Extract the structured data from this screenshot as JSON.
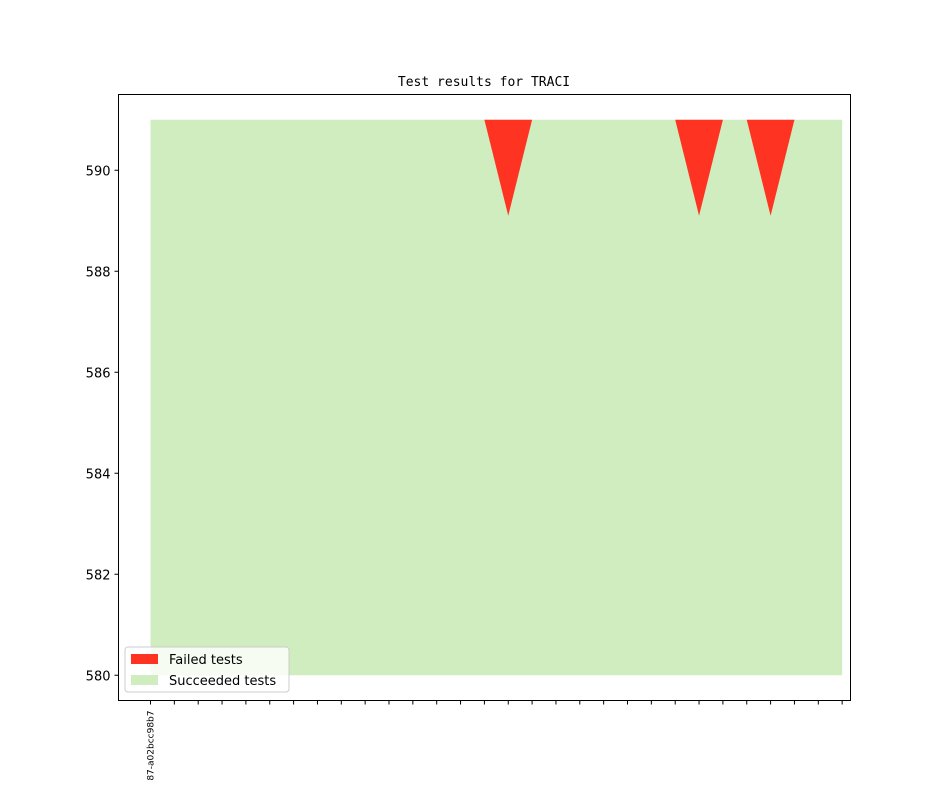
{
  "chart_data": {
    "type": "area",
    "title": "Test results for TRACI",
    "xlabel": "",
    "ylabel": "",
    "ylim": [
      579.5,
      591.5
    ],
    "yticks": [
      580,
      582,
      584,
      586,
      588,
      590
    ],
    "x_count": 30,
    "x_tick_labels": [
      "87-a02bcc98b7"
    ],
    "series": [
      {
        "name": "Failed tests",
        "color": "#ff3322",
        "baseline": 591,
        "values": [
          591,
          591,
          591,
          591,
          591,
          591,
          591,
          591,
          591,
          591,
          591,
          591,
          591,
          591,
          591,
          589.1,
          591,
          591,
          591,
          591,
          591,
          591,
          591,
          589.1,
          591,
          591,
          589.1,
          591,
          591,
          591
        ]
      },
      {
        "name": "Succeeded tests",
        "color": "#cfedbf",
        "baseline": 580,
        "values": [
          591,
          591,
          591,
          591,
          591,
          591,
          591,
          591,
          591,
          591,
          591,
          591,
          591,
          591,
          591,
          591,
          591,
          591,
          591,
          591,
          591,
          591,
          591,
          591,
          591,
          591,
          591,
          591,
          591,
          591
        ]
      }
    ],
    "legend": "lower-left",
    "grid": false
  }
}
